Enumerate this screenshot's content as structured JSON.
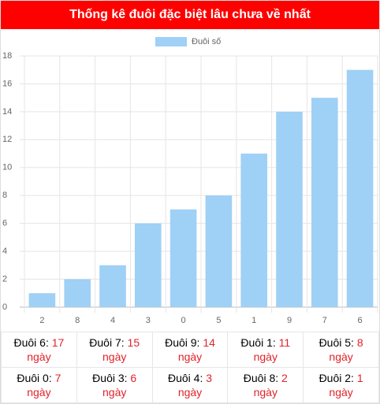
{
  "chart_data": {
    "type": "bar",
    "title": "Thống kê đuôi đặc biệt lâu chưa về nhất",
    "categories": [
      "2",
      "8",
      "4",
      "3",
      "0",
      "5",
      "1",
      "9",
      "7",
      "6"
    ],
    "series": [
      {
        "name": "Đuôi số",
        "color": "#9fd0f5",
        "values": [
          1,
          2,
          3,
          6,
          7,
          8,
          11,
          14,
          15,
          17
        ]
      }
    ],
    "ylim": [
      0,
      18
    ],
    "yticks": [
      0,
      2,
      4,
      6,
      8,
      10,
      12,
      14,
      16,
      18
    ],
    "grid": true,
    "legend": "top"
  },
  "table": {
    "rows": [
      [
        {
          "label": "Đuôi 6:",
          "value": 17,
          "unit": "ngày"
        },
        {
          "label": "Đuôi 7:",
          "value": 15,
          "unit": "ngày"
        },
        {
          "label": "Đuôi 9:",
          "value": 14,
          "unit": "ngày"
        },
        {
          "label": "Đuôi 1:",
          "value": 11,
          "unit": "ngày"
        },
        {
          "label": "Đuôi 5:",
          "value": 8,
          "unit": "ngày"
        }
      ],
      [
        {
          "label": "Đuôi 0:",
          "value": 7,
          "unit": "ngày"
        },
        {
          "label": "Đuôi 3:",
          "value": 6,
          "unit": "ngày"
        },
        {
          "label": "Đuôi 4:",
          "value": 3,
          "unit": "ngày"
        },
        {
          "label": "Đuôi 8:",
          "value": 2,
          "unit": "ngày"
        },
        {
          "label": "Đuôi 2:",
          "value": 1,
          "unit": "ngày"
        }
      ]
    ]
  }
}
